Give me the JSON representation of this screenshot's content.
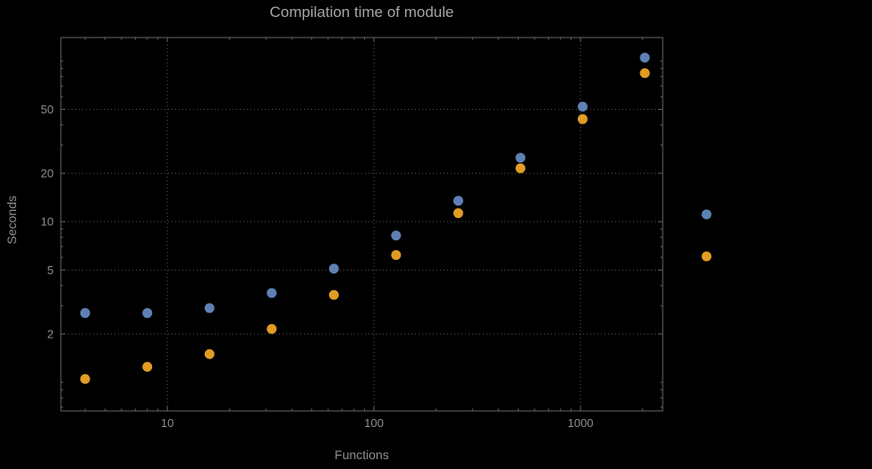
{
  "chart_data": {
    "type": "scatter",
    "title": "Compilation time of module",
    "xlabel": "Functions",
    "ylabel": "Seconds",
    "x_scale": "log",
    "y_scale": "log",
    "xlim": [
      3.05,
      2500
    ],
    "ylim": [
      0.664,
      140
    ],
    "x_ticks": [
      10,
      100,
      1000
    ],
    "x_tick_labels": [
      "10",
      "100",
      "1000"
    ],
    "y_ticks": [
      2,
      5,
      10,
      20,
      50
    ],
    "y_tick_labels": [
      "2",
      "5",
      "10",
      "20",
      "50"
    ],
    "grid": true,
    "legend_position": "right-outside-no-visible-labels",
    "series": [
      {
        "name": "series-1",
        "color": "#5e81b5",
        "points": [
          [
            4,
            2.7
          ],
          [
            8,
            2.7
          ],
          [
            16,
            2.9
          ],
          [
            32,
            3.6
          ],
          [
            64,
            5.1
          ],
          [
            128,
            8.2
          ],
          [
            256,
            13.5
          ],
          [
            512,
            25
          ],
          [
            1024,
            52
          ],
          [
            2048,
            105
          ]
        ]
      },
      {
        "name": "series-2",
        "color": "#e19c24",
        "points": [
          [
            4,
            1.05
          ],
          [
            8,
            1.25
          ],
          [
            16,
            1.5
          ],
          [
            32,
            2.15
          ],
          [
            64,
            3.5
          ],
          [
            128,
            6.2
          ],
          [
            256,
            11.3
          ],
          [
            512,
            21.5
          ],
          [
            1024,
            43.5
          ],
          [
            2048,
            84
          ]
        ]
      }
    ]
  },
  "colors": {
    "background": "#000000",
    "frame": "#666666",
    "grid": "#5a5a5a",
    "tick_text": "#8f8f8f",
    "title_text": "#a6a6a6"
  }
}
